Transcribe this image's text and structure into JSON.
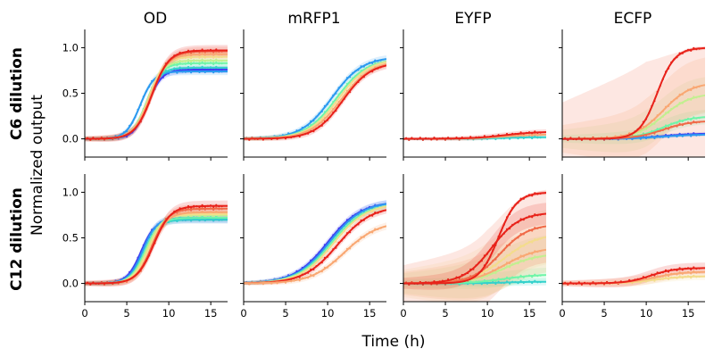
{
  "figure": {
    "ylabel": "Normalized output",
    "xlabel": "Time (h)",
    "row_labels": [
      "C6 dilution",
      "C12 dilution"
    ],
    "column_titles": [
      "OD",
      "mRFP1",
      "EYFP",
      "ECFP"
    ]
  },
  "chart_data": {
    "type": "line",
    "layout": "2x4 grid of line plots with scatter data points and shaded uncertainty bands",
    "x_ticks": [
      0,
      5,
      10,
      15
    ],
    "y_ticks": [
      "0.0",
      "0.5",
      "1.0"
    ],
    "xlim": [
      0,
      17
    ],
    "ylim": [
      -0.2,
      1.2
    ],
    "grid": false,
    "palette": [
      "#3f3cf0",
      "#2b9af0",
      "#33d1cc",
      "#6ef5a8",
      "#c2ef90",
      "#f3dc8c",
      "#f9a873",
      "#f06a48",
      "#e8221a"
    ],
    "panels": [
      {
        "row": "C6 dilution",
        "column": "OD",
        "curves": [
          {
            "midpoint": 7.5,
            "slope": 1.2,
            "final": 0.76,
            "color": "#3f3cf0",
            "band": 0.04
          },
          {
            "midpoint": 6.6,
            "slope": 1.2,
            "final": 0.74,
            "color": "#2b9af0",
            "band": 0.04
          },
          {
            "midpoint": 7.3,
            "slope": 1.2,
            "final": 0.78,
            "color": "#33d1cc",
            "band": 0.04
          },
          {
            "midpoint": 7.4,
            "slope": 1.15,
            "final": 0.83,
            "color": "#6ef5a8",
            "band": 0.04
          },
          {
            "midpoint": 7.5,
            "slope": 1.1,
            "final": 0.86,
            "color": "#c2ef90",
            "band": 0.04
          },
          {
            "midpoint": 7.6,
            "slope": 1.1,
            "final": 0.9,
            "color": "#f3dc8c",
            "band": 0.04
          },
          {
            "midpoint": 7.8,
            "slope": 1.0,
            "final": 0.93,
            "color": "#f9a873",
            "band": 0.05
          },
          {
            "midpoint": 8.0,
            "slope": 1.0,
            "final": 0.96,
            "color": "#f06a48",
            "band": 0.05
          },
          {
            "midpoint": 8.0,
            "slope": 1.0,
            "final": 0.97,
            "color": "#e8221a",
            "band": 0.06
          }
        ]
      },
      {
        "row": "C6 dilution",
        "column": "mRFP1",
        "curves": [
          {
            "midpoint": 10.5,
            "slope": 0.55,
            "final": 0.9,
            "color": "#2b9af0",
            "band": 0.04
          },
          {
            "midpoint": 11.0,
            "slope": 0.55,
            "final": 0.88,
            "color": "#6ef5a8",
            "band": 0.04
          },
          {
            "midpoint": 11.3,
            "slope": 0.55,
            "final": 0.88,
            "color": "#f3dc8c",
            "band": 0.04
          },
          {
            "midpoint": 11.6,
            "slope": 0.55,
            "final": 0.86,
            "color": "#f9a873",
            "band": 0.04
          },
          {
            "midpoint": 11.8,
            "slope": 0.6,
            "final": 0.84,
            "color": "#e8221a",
            "band": 0.04
          }
        ]
      },
      {
        "row": "C6 dilution",
        "column": "EYFP",
        "curves": [
          {
            "midpoint": 12.0,
            "slope": 0.5,
            "final": 0.02,
            "color": "#33d1cc",
            "band": 0.02
          },
          {
            "midpoint": 12.0,
            "slope": 0.5,
            "final": 0.05,
            "color": "#f9a873",
            "band": 0.02
          },
          {
            "midpoint": 12.0,
            "slope": 0.5,
            "final": 0.08,
            "color": "#e8221a",
            "band": 0.03
          }
        ]
      },
      {
        "row": "C6 dilution",
        "column": "ECFP",
        "curves": [
          {
            "midpoint": 12.0,
            "slope": 0.5,
            "final": 0.06,
            "color": "#3f3cf0",
            "band": 0.02
          },
          {
            "midpoint": 12.0,
            "slope": 0.5,
            "final": 0.05,
            "color": "#2b9af0",
            "band": 0.02
          },
          {
            "midpoint": 12.0,
            "slope": 0.6,
            "final": 0.25,
            "color": "#6ef5a8",
            "band": 0.08
          },
          {
            "midpoint": 12.0,
            "slope": 0.6,
            "final": 0.5,
            "color": "#c2ef90",
            "band": 0.2
          },
          {
            "midpoint": 12.0,
            "slope": 0.6,
            "final": 0.62,
            "color": "#f9a873",
            "band": 0.3
          },
          {
            "midpoint": 12.0,
            "slope": 0.6,
            "final": 0.2,
            "color": "#f06a48",
            "band": 0.8
          },
          {
            "midpoint": 11.3,
            "slope": 0.95,
            "final": 1.0,
            "color": "#e8221a",
            "band": 0.02
          }
        ]
      },
      {
        "row": "C12 dilution",
        "column": "OD",
        "curves": [
          {
            "midpoint": 6.7,
            "slope": 1.2,
            "final": 0.7,
            "color": "#3f3cf0",
            "band": 0.04
          },
          {
            "midpoint": 6.9,
            "slope": 1.2,
            "final": 0.72,
            "color": "#2b9af0",
            "band": 0.04
          },
          {
            "midpoint": 7.1,
            "slope": 1.2,
            "final": 0.7,
            "color": "#33d1cc",
            "band": 0.04
          },
          {
            "midpoint": 7.2,
            "slope": 1.15,
            "final": 0.72,
            "color": "#6ef5a8",
            "band": 0.04
          },
          {
            "midpoint": 7.4,
            "slope": 1.15,
            "final": 0.75,
            "color": "#c2ef90",
            "band": 0.04
          },
          {
            "midpoint": 7.6,
            "slope": 1.1,
            "final": 0.76,
            "color": "#f3dc8c",
            "band": 0.04
          },
          {
            "midpoint": 8.0,
            "slope": 1.1,
            "final": 0.78,
            "color": "#f9a873",
            "band": 0.05
          },
          {
            "midpoint": 8.0,
            "slope": 1.05,
            "final": 0.82,
            "color": "#f06a48",
            "band": 0.05
          },
          {
            "midpoint": 8.2,
            "slope": 1.0,
            "final": 0.85,
            "color": "#e8221a",
            "band": 0.06
          }
        ]
      },
      {
        "row": "C12 dilution",
        "column": "mRFP1",
        "curves": [
          {
            "midpoint": 10.0,
            "slope": 0.5,
            "final": 0.9,
            "color": "#3f3cf0",
            "band": 0.04
          },
          {
            "midpoint": 10.2,
            "slope": 0.5,
            "final": 0.9,
            "color": "#2b9af0",
            "band": 0.04
          },
          {
            "midpoint": 10.4,
            "slope": 0.5,
            "final": 0.88,
            "color": "#6ef5a8",
            "band": 0.04
          },
          {
            "midpoint": 10.7,
            "slope": 0.5,
            "final": 0.88,
            "color": "#f3dc8c",
            "band": 0.04
          },
          {
            "midpoint": 11.2,
            "slope": 0.5,
            "final": 0.85,
            "color": "#e8221a",
            "band": 0.04
          },
          {
            "midpoint": 12.0,
            "slope": 0.5,
            "final": 0.68,
            "color": "#f9a873",
            "band": 0.04
          }
        ]
      },
      {
        "row": "C12 dilution",
        "column": "EYFP",
        "curves": [
          {
            "midpoint": 12.0,
            "slope": 0.5,
            "final": 0.02,
            "color": "#33d1cc",
            "band": 0.04
          },
          {
            "midpoint": 12.0,
            "slope": 0.5,
            "final": 0.1,
            "color": "#6ef5a8",
            "band": 0.08
          },
          {
            "midpoint": 12.0,
            "slope": 0.5,
            "final": 0.33,
            "color": "#c2ef90",
            "band": 0.22
          },
          {
            "midpoint": 12.0,
            "slope": 0.5,
            "final": 0.55,
            "color": "#f3dc8c",
            "band": 0.3
          },
          {
            "midpoint": 12.0,
            "slope": 0.5,
            "final": 0.4,
            "color": "#f9a873",
            "band": 0.25
          },
          {
            "midpoint": 11.5,
            "slope": 0.6,
            "final": 0.65,
            "color": "#f06a48",
            "band": 0.4
          },
          {
            "midpoint": 10.5,
            "slope": 0.6,
            "final": 0.78,
            "color": "#e8221a",
            "band": 0.12
          },
          {
            "midpoint": 11.3,
            "slope": 0.9,
            "final": 1.0,
            "color": "#e8221a",
            "band": 0.02
          }
        ]
      },
      {
        "row": "C12 dilution",
        "column": "ECFP",
        "curves": [
          {
            "midpoint": 11.0,
            "slope": 0.6,
            "final": 0.08,
            "color": "#f3dc8c",
            "band": 0.04
          },
          {
            "midpoint": 11.0,
            "slope": 0.6,
            "final": 0.13,
            "color": "#f9a873",
            "band": 0.06
          },
          {
            "midpoint": 10.5,
            "slope": 0.7,
            "final": 0.17,
            "color": "#e8221a",
            "band": 0.06
          }
        ]
      }
    ]
  }
}
